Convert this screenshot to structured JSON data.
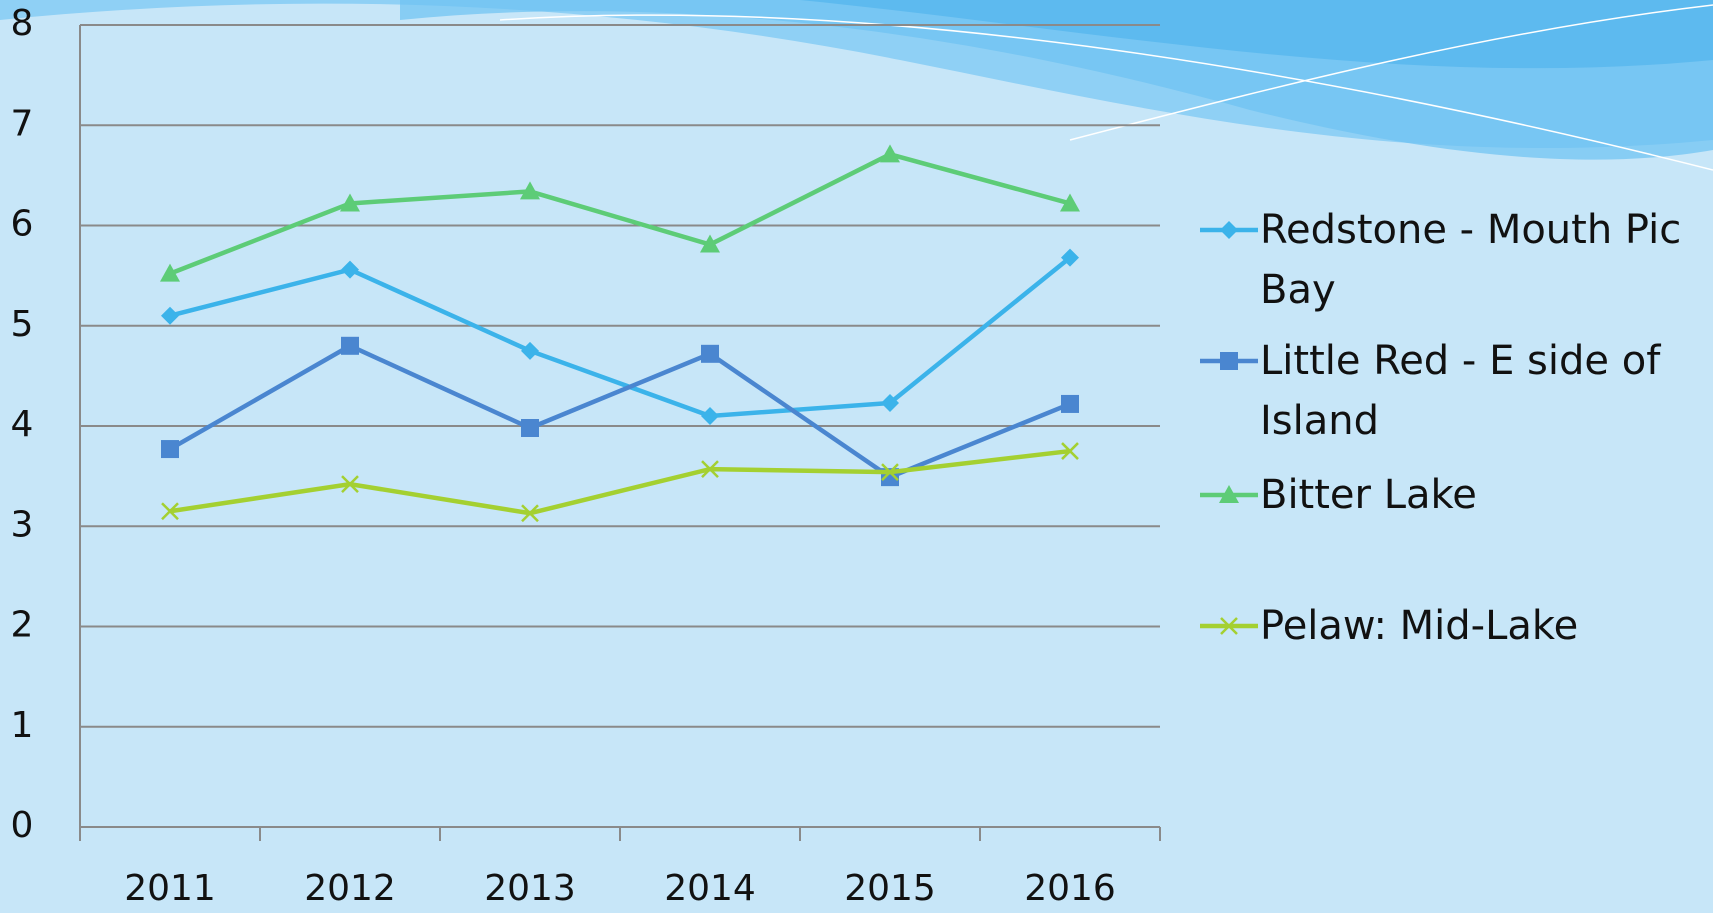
{
  "chart_data": {
    "type": "line",
    "categories": [
      "2011",
      "2012",
      "2013",
      "2014",
      "2015",
      "2016"
    ],
    "series": [
      {
        "name": "Redstone - Mouth Pic Bay",
        "color": "#3bb3ea",
        "marker": "diamond",
        "values": [
          5.1,
          5.56,
          4.75,
          4.1,
          4.23,
          5.68
        ]
      },
      {
        "name": "Little Red - E side of Island",
        "color": "#4a86d0",
        "marker": "square",
        "values": [
          3.77,
          4.8,
          3.98,
          4.72,
          3.49,
          4.22
        ]
      },
      {
        "name": "Bitter Lake",
        "color": "#5dcc77",
        "marker": "triangle",
        "values": [
          5.52,
          6.22,
          6.34,
          5.81,
          6.71,
          6.22
        ]
      },
      {
        "name": "Pelaw: Mid-Lake",
        "color": "#a4d031",
        "marker": "x",
        "values": [
          3.15,
          3.42,
          3.13,
          3.57,
          3.54,
          3.75
        ]
      }
    ],
    "ylim": [
      0,
      8
    ],
    "yticks": [
      0,
      1,
      2,
      3,
      4,
      5,
      6,
      7,
      8
    ],
    "grid": true,
    "legend": "right"
  }
}
